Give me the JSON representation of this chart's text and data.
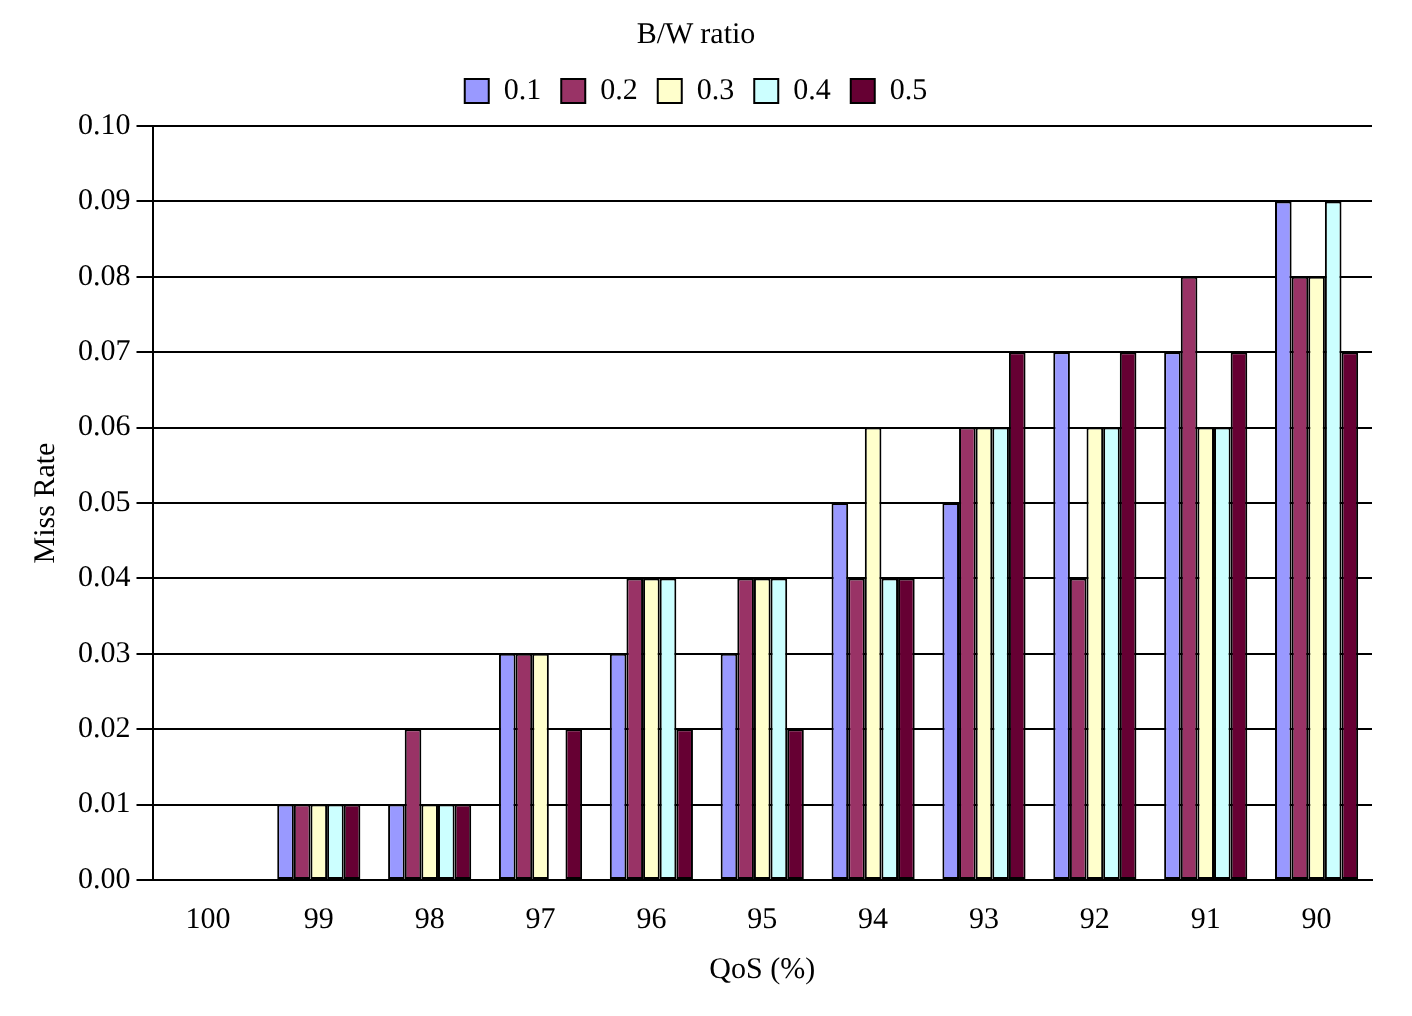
{
  "chart_data": {
    "type": "bar",
    "xlabel": "QoS (%)",
    "ylabel": "Miss Rate",
    "legend_title": "B/W ratio",
    "categories": [
      "100",
      "99",
      "98",
      "97",
      "96",
      "95",
      "94",
      "93",
      "92",
      "91",
      "90"
    ],
    "series": [
      {
        "name": "0.1",
        "color": "#9999ff",
        "values": [
          0,
          0.01,
          0.01,
          0.03,
          0.03,
          0.03,
          0.05,
          0.05,
          0.07,
          0.07,
          0.09
        ]
      },
      {
        "name": "0.2",
        "color": "#993366",
        "values": [
          0,
          0.01,
          0.02,
          0.03,
          0.04,
          0.04,
          0.04,
          0.06,
          0.04,
          0.08,
          0.08
        ]
      },
      {
        "name": "0.3",
        "color": "#ffffcc",
        "values": [
          0,
          0.01,
          0.01,
          0.03,
          0.04,
          0.04,
          0.06,
          0.06,
          0.06,
          0.06,
          0.08
        ]
      },
      {
        "name": "0.4",
        "color": "#ccffff",
        "values": [
          0,
          0.01,
          0.01,
          0,
          0.04,
          0.04,
          0.04,
          0.06,
          0.06,
          0.06,
          0.09
        ]
      },
      {
        "name": "0.5",
        "color": "#660033",
        "values": [
          0,
          0.01,
          0.01,
          0.02,
          0.02,
          0.02,
          0.04,
          0.07,
          0.07,
          0.07,
          0.07
        ]
      }
    ],
    "ylim": [
      0,
      0.1
    ],
    "yticks": [
      {
        "value": 0,
        "label": "0.00"
      },
      {
        "value": 0.01,
        "label": "0.01"
      },
      {
        "value": 0.02,
        "label": "0.02"
      },
      {
        "value": 0.03,
        "label": "0.03"
      },
      {
        "value": 0.04,
        "label": "0.04"
      },
      {
        "value": 0.05,
        "label": "0.05"
      },
      {
        "value": 0.06,
        "label": "0.06"
      },
      {
        "value": 0.07,
        "label": "0.07"
      },
      {
        "value": 0.08,
        "label": "0.08"
      },
      {
        "value": 0.09,
        "label": "0.09"
      },
      {
        "value": 0.1,
        "label": "0.10"
      }
    ],
    "grid": "y",
    "legend": "top"
  }
}
